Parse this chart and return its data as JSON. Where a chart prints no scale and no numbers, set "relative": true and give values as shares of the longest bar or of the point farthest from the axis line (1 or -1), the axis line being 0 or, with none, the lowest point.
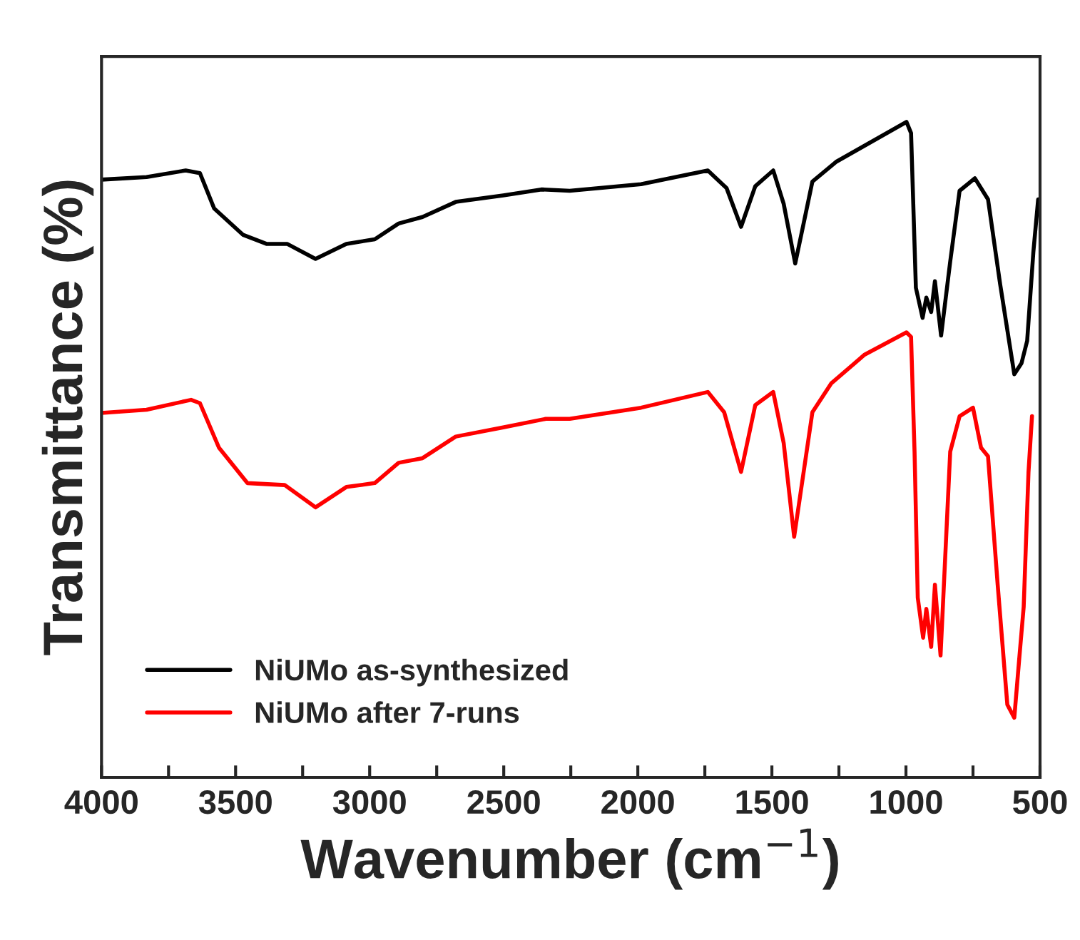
{
  "chart_data": {
    "type": "line",
    "relative": true,
    "xlabel": "Wavenumber (cm$^{−1}$)",
    "ylabel": "Transmittance (%)",
    "xlim": [
      4000,
      500
    ],
    "xticks": [
      4000,
      {
        "value": 3750,
        "label": null
      },
      3500,
      {
        "value": 3250,
        "label": null
      },
      3000,
      {
        "value": 2750,
        "label": null
      },
      2500,
      {
        "value": 2250,
        "label": null
      },
      2000,
      {
        "value": 1750,
        "label": null
      },
      1500,
      {
        "value": 1250,
        "label": null
      },
      1000,
      {
        "value": 750,
        "label": null
      },
      500
    ],
    "legend": "bottom left",
    "grid": false,
    "line_style": "solid",
    "marker": "none",
    "series": [
      {
        "name": "NiUMo as-synthesized",
        "color": "#000000",
        "x": [
          4000,
          3832,
          3686,
          3633,
          3580,
          3473,
          3385,
          3308,
          3202,
          3087,
          2981,
          2892,
          2803,
          2679,
          2502,
          2360,
          2254,
          1988,
          1739,
          1669,
          1615,
          1562,
          1495,
          1456,
          1413,
          1349,
          1261,
          998,
          981,
          963,
          938,
          924,
          906,
          892,
          869,
          835,
          800,
          743,
          694,
          649,
          596,
          569,
          548,
          525,
          507
        ],
        "values": [
          0.912,
          0.916,
          0.926,
          0.922,
          0.868,
          0.828,
          0.814,
          0.814,
          0.791,
          0.814,
          0.821,
          0.845,
          0.855,
          0.878,
          0.888,
          0.897,
          0.895,
          0.905,
          0.926,
          0.899,
          0.84,
          0.902,
          0.926,
          0.875,
          0.784,
          0.909,
          0.939,
          1.0,
          0.983,
          0.747,
          0.701,
          0.732,
          0.71,
          0.757,
          0.674,
          0.787,
          0.895,
          0.914,
          0.882,
          0.753,
          0.615,
          0.632,
          0.666,
          0.801,
          0.882
        ]
      },
      {
        "name": "NiUMo after 7-runs",
        "color": "#ff0000",
        "x": [
          4000,
          3832,
          3666,
          3633,
          3562,
          3456,
          3317,
          3202,
          3087,
          2981,
          2892,
          2803,
          2679,
          2502,
          2343,
          2254,
          1988,
          1739,
          1678,
          1615,
          1562,
          1495,
          1456,
          1417,
          1349,
          1279,
          1154,
          998,
          981,
          968,
          956,
          936,
          924,
          906,
          892,
          871,
          835,
          800,
          750,
          720,
          694,
          658,
          622,
          596,
          578,
          561,
          543,
          530
        ],
        "values": [
          0.556,
          0.561,
          0.576,
          0.571,
          0.503,
          0.449,
          0.446,
          0.412,
          0.443,
          0.449,
          0.48,
          0.487,
          0.52,
          0.534,
          0.547,
          0.547,
          0.564,
          0.588,
          0.557,
          0.466,
          0.568,
          0.588,
          0.51,
          0.367,
          0.557,
          0.601,
          0.645,
          0.679,
          0.672,
          0.497,
          0.274,
          0.213,
          0.257,
          0.199,
          0.294,
          0.186,
          0.497,
          0.551,
          0.564,
          0.503,
          0.49,
          0.294,
          0.111,
          0.091,
          0.179,
          0.26,
          0.466,
          0.551
        ]
      }
    ]
  }
}
